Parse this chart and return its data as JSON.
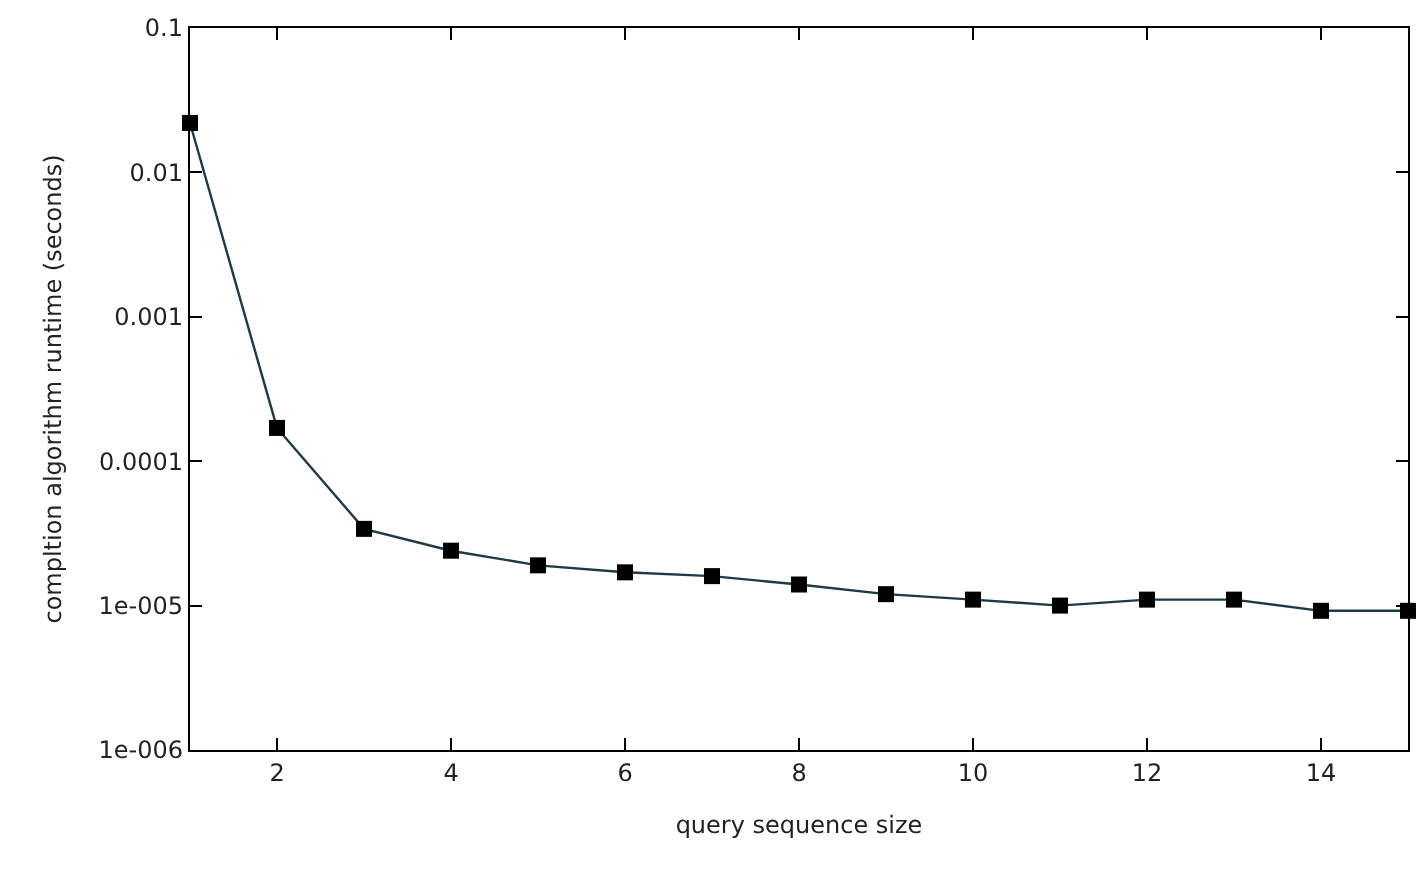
{
  "chart_data": {
    "type": "line",
    "xlabel": "query sequence size",
    "ylabel": "compltion algorithm runtime (seconds)",
    "x": [
      1,
      2,
      3,
      4,
      5,
      6,
      7,
      8,
      9,
      10,
      11,
      12,
      13,
      14,
      15
    ],
    "series": [
      {
        "color": "#000000",
        "values": [
          0.022,
          0.00017,
          3.4e-05,
          2.4e-05,
          1.9e-05,
          1.7e-05,
          1.6e-05,
          1.4e-05,
          1.2e-05,
          1.1e-05,
          1e-05,
          1.1e-05,
          1.1e-05,
          9.2e-06,
          9.2e-06
        ]
      }
    ],
    "log": "y",
    "xlim": [
      1,
      15
    ],
    "xticks": [
      2,
      4,
      6,
      8,
      10,
      12,
      14
    ],
    "ylim": [
      1e-06,
      0.1
    ],
    "yticks": [
      {
        "value": 1e-06,
        "label": "1e-006"
      },
      {
        "value": 1e-05,
        "label": "1e-005"
      },
      {
        "value": 0.0001,
        "label": "0.0001"
      },
      {
        "value": 0.001,
        "label": "0.001"
      },
      {
        "value": 0.01,
        "label": "0.01"
      },
      {
        "value": 0.1,
        "label": "0.1"
      }
    ],
    "marker": "square",
    "line_style": "solid"
  }
}
